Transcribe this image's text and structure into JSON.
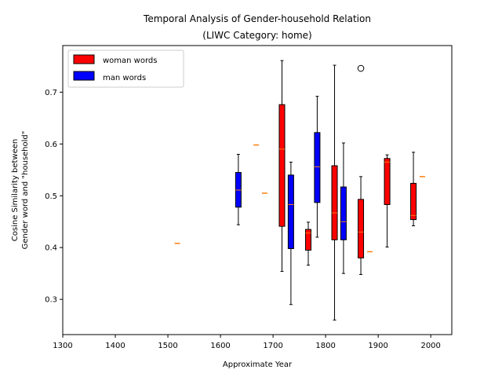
{
  "chart_data": {
    "type": "box",
    "title": "Temporal Analysis of Gender-household Relation",
    "subtitle": "(LIWC Category: home)",
    "xlabel": "Approximate Year",
    "ylabel_line1": "Cosine Similarity between",
    "ylabel_line2": "Gender word and \"household\"",
    "xlim": [
      1300,
      2040
    ],
    "ylim": [
      0.232,
      0.79
    ],
    "xticks": [
      1300,
      1400,
      1500,
      1600,
      1700,
      1800,
      1900,
      2000
    ],
    "yticks": [
      0.3,
      0.4,
      0.5,
      0.6,
      0.7
    ],
    "legend_position": "upper-left",
    "series": [
      {
        "name": "woman words",
        "color": "#ff0000",
        "boxes": [
          {
            "x": 1518,
            "whislo": 0.408,
            "q1": 0.408,
            "med": 0.408,
            "q3": 0.408,
            "whishi": 0.408
          },
          {
            "x": 1668,
            "whislo": 0.598,
            "q1": 0.598,
            "med": 0.598,
            "q3": 0.598,
            "whishi": 0.598
          },
          {
            "x": 1717,
            "whislo": 0.354,
            "q1": 0.441,
            "med": 0.59,
            "q3": 0.676,
            "whishi": 0.761
          },
          {
            "x": 1767,
            "whislo": 0.366,
            "q1": 0.395,
            "med": 0.428,
            "q3": 0.435,
            "whishi": 0.449
          },
          {
            "x": 1817,
            "whislo": 0.26,
            "q1": 0.415,
            "med": 0.467,
            "q3": 0.558,
            "whishi": 0.752
          },
          {
            "x": 1867,
            "whislo": 0.348,
            "q1": 0.38,
            "med": 0.43,
            "q3": 0.493,
            "whishi": 0.537,
            "fliers": [
              0.746
            ]
          },
          {
            "x": 1917,
            "whislo": 0.401,
            "q1": 0.483,
            "med": 0.565,
            "q3": 0.572,
            "whishi": 0.579
          },
          {
            "x": 1967,
            "whislo": 0.442,
            "q1": 0.454,
            "med": 0.462,
            "q3": 0.524,
            "whishi": 0.584
          }
        ]
      },
      {
        "name": "man words",
        "color": "#0000ff",
        "boxes": [
          {
            "x": 1634,
            "whislo": 0.444,
            "q1": 0.478,
            "med": 0.511,
            "q3": 0.545,
            "whishi": 0.58
          },
          {
            "x": 1684,
            "whislo": 0.505,
            "q1": 0.505,
            "med": 0.505,
            "q3": 0.505,
            "whishi": 0.505
          },
          {
            "x": 1734,
            "whislo": 0.29,
            "q1": 0.398,
            "med": 0.483,
            "q3": 0.54,
            "whishi": 0.565
          },
          {
            "x": 1784,
            "whislo": 0.42,
            "q1": 0.487,
            "med": 0.556,
            "q3": 0.622,
            "whishi": 0.692
          },
          {
            "x": 1834,
            "whislo": 0.35,
            "q1": 0.415,
            "med": 0.45,
            "q3": 0.517,
            "whishi": 0.602
          },
          {
            "x": 1884,
            "whislo": 0.392,
            "q1": 0.392,
            "med": 0.392,
            "q3": 0.392,
            "whishi": 0.392
          },
          {
            "x": 1984,
            "whislo": 0.537,
            "q1": 0.537,
            "med": 0.537,
            "q3": 0.537,
            "whishi": 0.537
          }
        ]
      }
    ],
    "median_color": "#ff7f0e"
  }
}
